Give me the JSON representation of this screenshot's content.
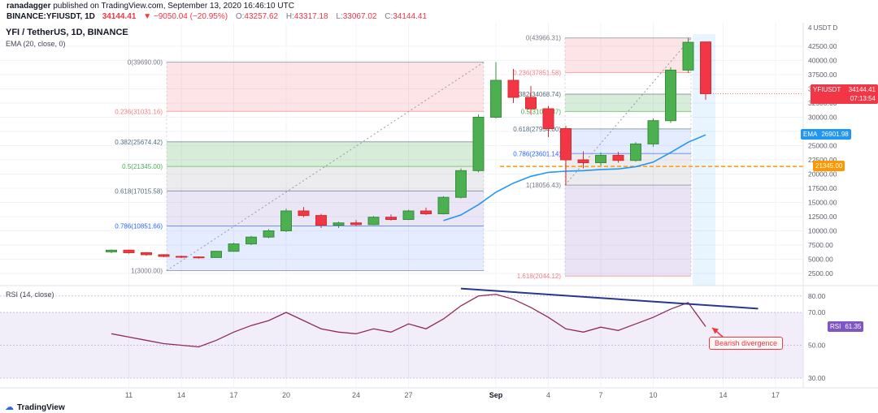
{
  "header": {
    "username": "ranadagger",
    "published_suffix": " published on TradingView.com, September 13, 2020 16:46:10 UTC",
    "symbol_title": "BINANCE:YFIUSDT, 1D",
    "last_price": "34144.41",
    "change": "▼ −9050.04 (−20.95%)",
    "ohlc": [
      {
        "label": "O:",
        "value": "43257.62"
      },
      {
        "label": "H:",
        "value": "43317.18"
      },
      {
        "label": "L:",
        "value": "33067.02"
      },
      {
        "label": "C:",
        "value": "34144.41"
      }
    ]
  },
  "legend": {
    "title": "YFI / TetherUS, 1D, BINANCE",
    "indicator": "EMA (20, close, 0)",
    "rsi": "RSI (14, close)"
  },
  "badges": {
    "symbol": {
      "label": "YFIUSDT",
      "value": "34144.41",
      "countdown": "07:13:54",
      "color": "#f23645"
    },
    "ema": {
      "label": "EMA",
      "value": "26901.98",
      "color": "#2196f3"
    },
    "level": {
      "value": "21345.00",
      "color": "#ff9800"
    },
    "rsi": {
      "label": "RSI",
      "value": "61.35",
      "color": "#7e57c2"
    }
  },
  "annotation": {
    "text": "Bearish divergence",
    "color": "#f23645"
  },
  "footer": {
    "brand": "TradingView"
  },
  "chart_data": {
    "type": "candlestick",
    "title": "YFI / TetherUS, 1D, BINANCE",
    "exchange": "BINANCE",
    "interval": "1D",
    "axis_top_label": "4 USDT D",
    "price_ticks": [
      "42500.00",
      "40000.00",
      "37500.00",
      "35000.00",
      "32500.00",
      "30000.00",
      "27500.00",
      "25000.00",
      "22500.00",
      "20000.00",
      "17500.00",
      "15000.00",
      "12500.00",
      "10000.00",
      "7500.00",
      "5000.00",
      "2500.00"
    ],
    "rsi_ticks": [
      "80.00",
      "70.00",
      "50.00",
      "30.00"
    ],
    "time_ticks": [
      {
        "label": "11",
        "index": 1
      },
      {
        "label": "14",
        "index": 4
      },
      {
        "label": "17",
        "index": 7
      },
      {
        "label": "20",
        "index": 10
      },
      {
        "label": "24",
        "index": 14
      },
      {
        "label": "27",
        "index": 17
      },
      {
        "label": "Sep",
        "index": 22,
        "major": true
      },
      {
        "label": "4",
        "index": 25
      },
      {
        "label": "7",
        "index": 28
      },
      {
        "label": "10",
        "index": 31
      },
      {
        "label": "14",
        "index": 35
      },
      {
        "label": "17",
        "index": 38
      }
    ],
    "dates": [
      "Aug 10",
      "Aug 11",
      "Aug 12",
      "Aug 13",
      "Aug 14",
      "Aug 15",
      "Aug 16",
      "Aug 17",
      "Aug 18",
      "Aug 19",
      "Aug 20",
      "Aug 21",
      "Aug 22",
      "Aug 23",
      "Aug 24",
      "Aug 25",
      "Aug 26",
      "Aug 27",
      "Aug 28",
      "Aug 29",
      "Aug 30",
      "Aug 31",
      "Sep 1",
      "Sep 2",
      "Sep 3",
      "Sep 4",
      "Sep 5",
      "Sep 6",
      "Sep 7",
      "Sep 8",
      "Sep 9",
      "Sep 10",
      "Sep 11",
      "Sep 12",
      "Sep 13"
    ],
    "candles": [
      [
        6300,
        6700,
        6050,
        6600
      ],
      [
        6600,
        6700,
        6000,
        6150
      ],
      [
        6150,
        6250,
        5600,
        5800
      ],
      [
        5800,
        5900,
        5350,
        5500
      ],
      [
        5500,
        5650,
        5200,
        5400
      ],
      [
        5400,
        5500,
        5100,
        5300
      ],
      [
        5300,
        6500,
        5250,
        6400
      ],
      [
        6400,
        7900,
        6300,
        7700
      ],
      [
        7700,
        9100,
        7500,
        8900
      ],
      [
        8900,
        10300,
        8700,
        10000
      ],
      [
        10000,
        13900,
        9800,
        13500
      ],
      [
        13500,
        14200,
        12400,
        12700
      ],
      [
        12700,
        13000,
        10500,
        11000
      ],
      [
        11000,
        11600,
        10500,
        11400
      ],
      [
        11400,
        11900,
        10900,
        11100
      ],
      [
        11100,
        12600,
        11000,
        12400
      ],
      [
        12400,
        12900,
        11800,
        12000
      ],
      [
        12000,
        13700,
        11900,
        13500
      ],
      [
        13500,
        14100,
        12800,
        13000
      ],
      [
        13000,
        16100,
        12900,
        15900
      ],
      [
        15900,
        21000,
        15700,
        20600
      ],
      [
        20600,
        30500,
        20300,
        30000
      ],
      [
        30000,
        39690,
        29800,
        36500
      ],
      [
        36500,
        38500,
        32500,
        33500
      ],
      [
        33500,
        35500,
        30500,
        31500
      ],
      [
        31500,
        32000,
        26500,
        28000
      ],
      [
        28000,
        28500,
        18056.43,
        22500
      ],
      [
        22500,
        24000,
        21000,
        22000
      ],
      [
        22000,
        23800,
        21500,
        23300
      ],
      [
        23300,
        23900,
        22000,
        22400
      ],
      [
        22400,
        25600,
        22200,
        25300
      ],
      [
        25300,
        29800,
        24800,
        29400
      ],
      [
        29400,
        38800,
        29000,
        38300
      ],
      [
        38300,
        43966.31,
        37800,
        43200
      ],
      [
        43257.62,
        43317.18,
        33067.02,
        34144.41
      ]
    ],
    "up_color": "#4caf50",
    "up_border": "#388e3c",
    "down_color": "#f23645",
    "down_border": "#d32f2f",
    "ema20": {
      "name": "EMA (20, close, 0)",
      "color": "#2196f3",
      "start_index": 19,
      "values": [
        11800,
        12800,
        14600,
        16800,
        18400,
        19600,
        20300,
        20500,
        20600,
        20800,
        20900,
        21300,
        22100,
        23800,
        25600,
        26901.98
      ],
      "last": 26901.98
    },
    "rsi14": {
      "name": "RSI (14, close)",
      "color": "#8e2b5c",
      "last": 61.35,
      "values": [
        57,
        55,
        53,
        51,
        50,
        49,
        53,
        58,
        62,
        65,
        70,
        65,
        60,
        58,
        57,
        60,
        58,
        63,
        60,
        66,
        74,
        80,
        81,
        78,
        73,
        67,
        60,
        58,
        61,
        59,
        63,
        67,
        72,
        76,
        61.35
      ]
    },
    "fib_left": {
      "levels": [
        {
          "ratio": "0",
          "value": 39690.0,
          "label": "0(39690.00)",
          "color": "#787b86",
          "band": "rgba(242,54,69,0.13)"
        },
        {
          "ratio": "0.236",
          "value": 31031.16,
          "label": "0.236(31031.16)",
          "color": "#f77c80",
          "band": "none"
        },
        {
          "ratio": "0.382",
          "value": 25674.42,
          "label": "0.382(25674.42)",
          "color": "#546e7a",
          "band": "rgba(76,175,80,0.22)"
        },
        {
          "ratio": "0.5",
          "value": 21345.0,
          "label": "0.5(21345.00)",
          "color": "#4caf50",
          "band": "rgba(120,123,134,0.14)"
        },
        {
          "ratio": "0.618",
          "value": 17015.58,
          "label": "0.618(17015.58)",
          "color": "#546e7a",
          "band": "rgba(103,58,183,0.13)"
        },
        {
          "ratio": "0.786",
          "value": 10851.66,
          "label": "0.786(10851.66)",
          "color": "#2962ff",
          "band": "rgba(41,98,255,0.12)"
        },
        {
          "ratio": "1",
          "value": 3000.0,
          "label": "1(3000.00)",
          "color": "#787b86",
          "band": "none"
        }
      ]
    },
    "fib_right": {
      "levels": [
        {
          "ratio": "0",
          "value": 43966.31,
          "label": "0(43966.31)",
          "color": "#787b86",
          "band": "rgba(242,54,69,0.13)"
        },
        {
          "ratio": "0.236",
          "value": 37851.58,
          "label": "0.236(37851.58)",
          "color": "#f77c80",
          "band": "none"
        },
        {
          "ratio": "0.382",
          "value": 34068.74,
          "label": "0.382(34068.74)",
          "color": "#546e7a",
          "band": "rgba(76,175,80,0.22)"
        },
        {
          "ratio": "0.5",
          "value": 31011.37,
          "label": "0.5(31011.37)",
          "color": "#4caf50",
          "band": "none"
        },
        {
          "ratio": "0.618",
          "value": 27954.0,
          "label": "0.618(27954.00)",
          "color": "#546e7a",
          "band": "rgba(41,98,255,0.12)"
        },
        {
          "ratio": "0.786",
          "value": 23601.14,
          "label": "0.786(23601.14)",
          "color": "#2962ff",
          "band": "rgba(120,123,134,0.14)"
        },
        {
          "ratio": "1",
          "value": 18056.43,
          "label": "1(18056.43)",
          "color": "#787b86",
          "band": "rgba(103,58,183,0.14)"
        },
        {
          "ratio": "1.618",
          "value": 2044.12,
          "label": "1.618(2044.12)",
          "color": "#f77c80",
          "band": "none"
        }
      ]
    },
    "level_line": {
      "price": 21345.0,
      "color": "#ff9800",
      "style": "dashed"
    },
    "divergence_line": {
      "color": "#283593",
      "from": {
        "index": 20,
        "rsi": 84.5
      },
      "to": {
        "index": 37,
        "rsi": 72.3
      }
    }
  }
}
